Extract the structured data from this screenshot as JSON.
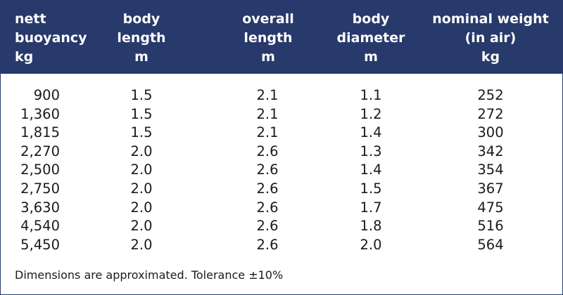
{
  "table": {
    "headers": [
      [
        "nett",
        "buoyancy",
        "kg"
      ],
      [
        "body",
        "length",
        "m"
      ],
      [
        "overall",
        "length",
        "m"
      ],
      [
        "body",
        "diameter",
        "m"
      ],
      [
        "nominal weight",
        "(in air)",
        "kg"
      ]
    ],
    "rows": [
      [
        "900",
        "1.5",
        "2.1",
        "1.1",
        "252"
      ],
      [
        "1,360",
        "1.5",
        "2.1",
        "1.2",
        "272"
      ],
      [
        "1,815",
        "1.5",
        "2.1",
        "1.4",
        "300"
      ],
      [
        "2,270",
        "2.0",
        "2.6",
        "1.3",
        "342"
      ],
      [
        "2,500",
        "2.0",
        "2.6",
        "1.4",
        "354"
      ],
      [
        "2,750",
        "2.0",
        "2.6",
        "1.5",
        "367"
      ],
      [
        "3,630",
        "2.0",
        "2.6",
        "1.7",
        "475"
      ],
      [
        "4,540",
        "2.0",
        "2.6",
        "1.8",
        "516"
      ],
      [
        "5,450",
        "2.0",
        "2.6",
        "2.0",
        "564"
      ]
    ]
  },
  "footnote": "Dimensions are approximated. Tolerance ±10%",
  "colors": {
    "header_background": "#283a6b",
    "header_text": "#ffffff"
  }
}
